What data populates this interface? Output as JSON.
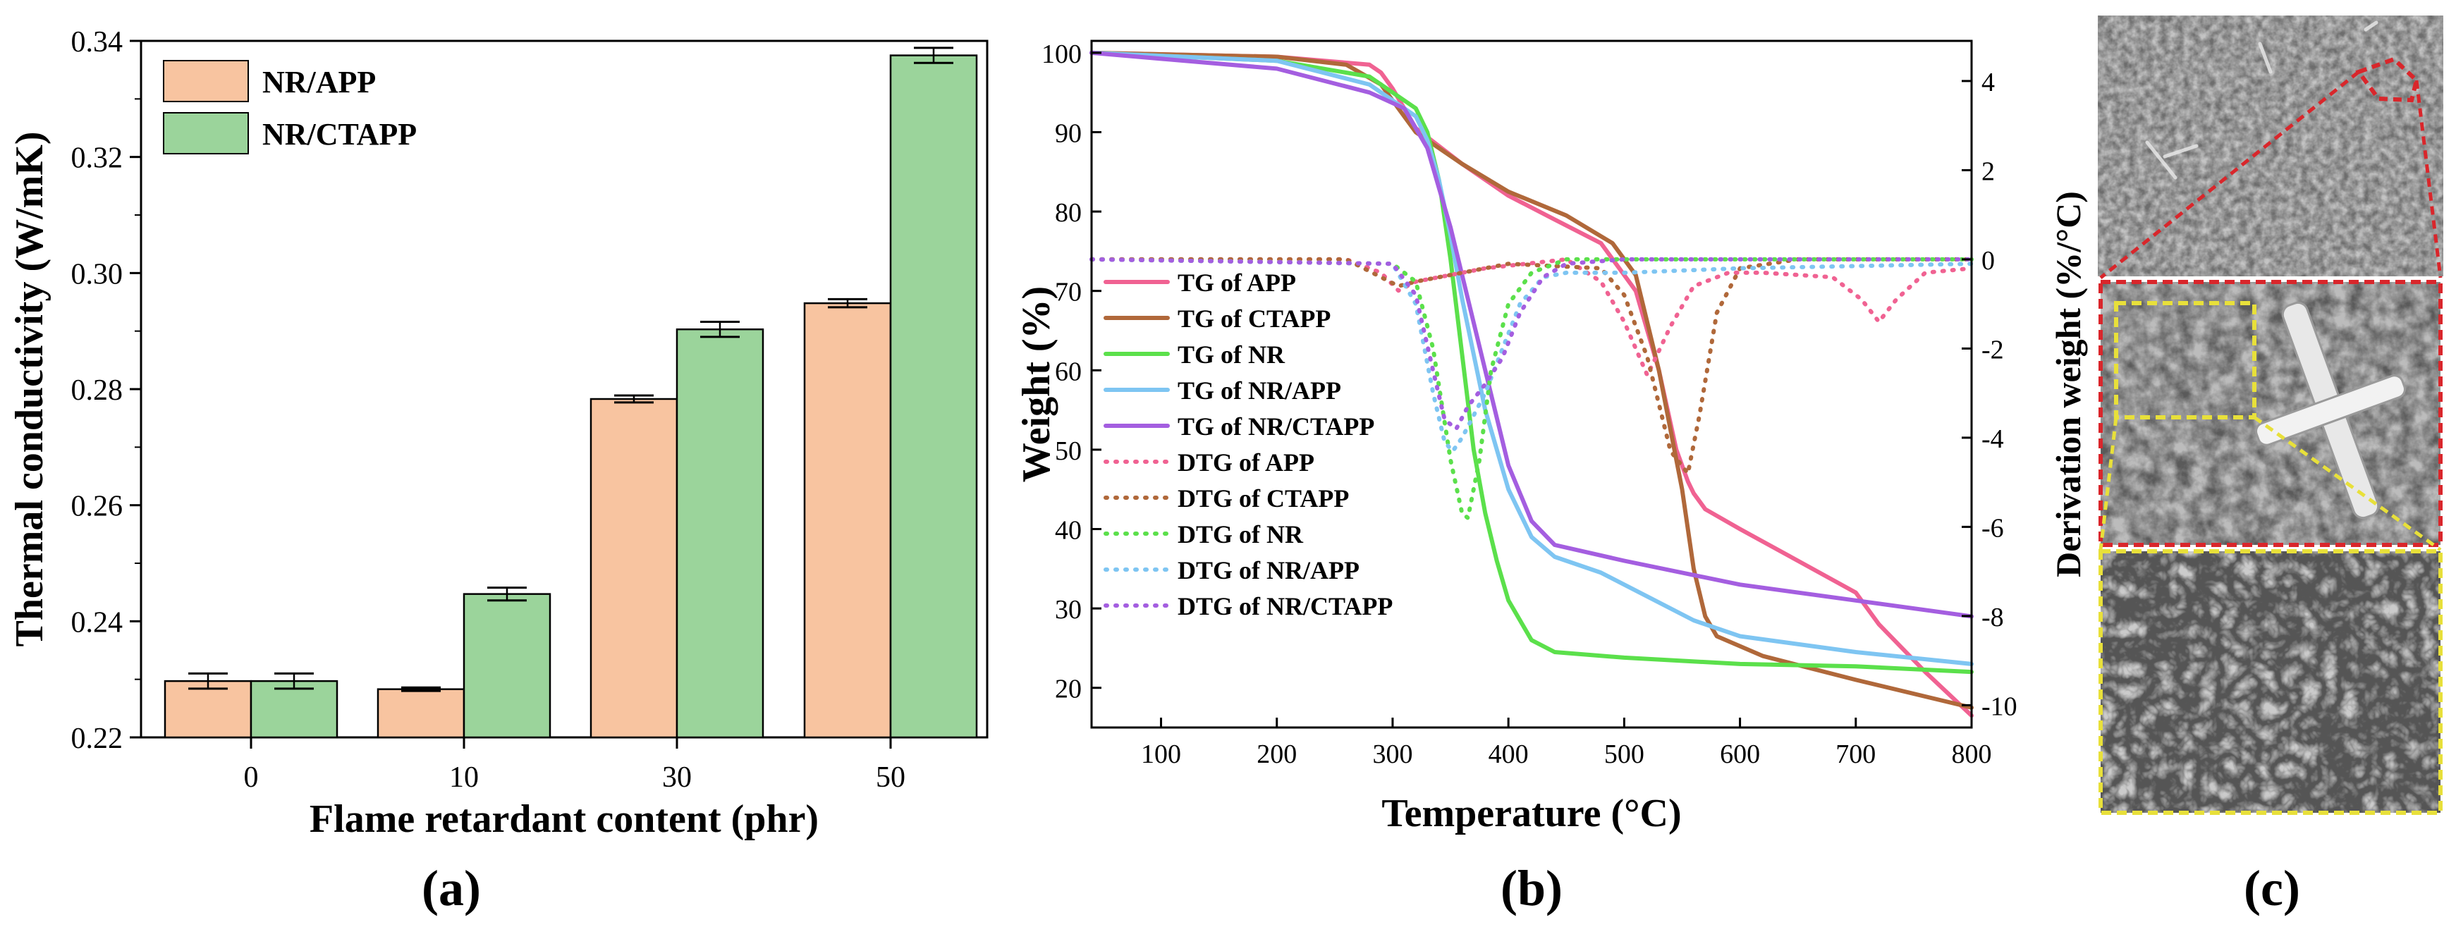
{
  "panel_labels": {
    "a": "(a)",
    "b": "(b)",
    "c": "(c)"
  },
  "colors": {
    "nr_app_bar": "#f8c4a0",
    "nr_ctapp_bar": "#9bd49b",
    "tg_app": "#f06292",
    "tg_ctapp": "#b0683a",
    "tg_nr": "#5be04b",
    "tg_nr_app": "#7ec5f2",
    "tg_nr_ctapp": "#a45ee0",
    "sem_red_box": "#d9262b",
    "sem_yellow_box": "#e8e03a"
  },
  "chart_data": [
    {
      "type": "bar",
      "title": "",
      "xlabel": "Flame retardant content (phr)",
      "ylabel": "Thermal conductivity (W/mK)",
      "categories": [
        "0",
        "10",
        "30",
        "50"
      ],
      "ylim": [
        0.22,
        0.34
      ],
      "yticks": [
        "0.22",
        "0.24",
        "0.26",
        "0.28",
        "0.30",
        "0.32",
        "0.34"
      ],
      "legend_position": "top-left",
      "series": [
        {
          "name": "NR/APP",
          "values": [
            0.2297,
            0.2283,
            0.2783,
            0.2948
          ],
          "errors": [
            0.0013,
            0.0003,
            0.0006,
            0.0007
          ]
        },
        {
          "name": "NR/CTAPP",
          "values": [
            0.2297,
            0.2447,
            0.2903,
            0.3375
          ],
          "errors": [
            0.0013,
            0.0011,
            0.0013,
            0.0013
          ]
        }
      ]
    },
    {
      "type": "line",
      "title": "",
      "xlabel": "Temperature (°C)",
      "ylabel": "Weight (%)",
      "y2label": "Derivation weight (%/°C)",
      "xlim": [
        40,
        800
      ],
      "ylim": [
        15,
        101.5
      ],
      "y2lim": [
        -10.5,
        4.9
      ],
      "xticks": [
        "100",
        "200",
        "300",
        "400",
        "500",
        "600",
        "700",
        "800"
      ],
      "yticks": [
        "20",
        "30",
        "40",
        "50",
        "60",
        "70",
        "80",
        "90",
        "100"
      ],
      "y2ticks": [
        "-10",
        "-8",
        "-6",
        "-4",
        "-2",
        "0",
        "2",
        "4"
      ],
      "legend_position": "center-left",
      "series": [
        {
          "name": "TG of APP",
          "style": "solid",
          "axis": "left",
          "x": [
            40,
            200,
            280,
            290,
            300,
            320,
            360,
            400,
            440,
            480,
            510,
            530,
            545,
            555,
            560,
            570,
            600,
            650,
            700,
            720,
            760,
            800
          ],
          "y": [
            100,
            99.5,
            98.5,
            97.5,
            95.5,
            90.5,
            86,
            82,
            79,
            76,
            70,
            60,
            50,
            46,
            44.5,
            42.5,
            40,
            36,
            32,
            28,
            22,
            16.5
          ]
        },
        {
          "name": "TG of CTAPP",
          "style": "solid",
          "axis": "left",
          "x": [
            40,
            200,
            260,
            290,
            300,
            320,
            360,
            400,
            450,
            490,
            510,
            530,
            550,
            560,
            570,
            580,
            620,
            700,
            800
          ],
          "y": [
            100,
            99.5,
            98.5,
            96,
            94,
            90,
            86,
            82.5,
            79.5,
            76,
            72,
            60,
            45,
            35,
            29,
            26.5,
            24,
            21,
            17.5
          ]
        },
        {
          "name": "TG of NR",
          "style": "solid",
          "axis": "left",
          "x": [
            40,
            200,
            280,
            320,
            330,
            340,
            350,
            360,
            370,
            380,
            390,
            400,
            420,
            440,
            500,
            600,
            700,
            800
          ],
          "y": [
            100,
            99,
            97,
            93,
            90,
            84,
            74,
            62,
            50,
            42,
            36,
            31,
            26,
            24.5,
            23.8,
            23,
            22.7,
            22
          ]
        },
        {
          "name": "TG of NR/APP",
          "style": "solid",
          "axis": "left",
          "x": [
            40,
            200,
            280,
            320,
            330,
            340,
            350,
            360,
            370,
            380,
            400,
            420,
            440,
            480,
            520,
            560,
            600,
            700,
            800
          ],
          "y": [
            100,
            99,
            96,
            92,
            89,
            84,
            77,
            69,
            62,
            55,
            45,
            39,
            36.5,
            34.5,
            31.5,
            28.5,
            26.5,
            24.5,
            23
          ]
        },
        {
          "name": "TG of NR/CTAPP",
          "style": "solid",
          "axis": "left",
          "x": [
            40,
            200,
            280,
            310,
            330,
            340,
            350,
            360,
            370,
            380,
            400,
            420,
            440,
            500,
            600,
            700,
            800
          ],
          "y": [
            100,
            98,
            95,
            93,
            88,
            83,
            78,
            72,
            66,
            60,
            48,
            41,
            38,
            36,
            33,
            31,
            29
          ]
        },
        {
          "name": "DTG of APP",
          "style": "dotted",
          "axis": "right",
          "x": [
            40,
            260,
            290,
            305,
            320,
            340,
            380,
            450,
            480,
            500,
            520,
            540,
            560,
            590,
            620,
            680,
            705,
            720,
            735,
            760,
            800
          ],
          "y": [
            0,
            0,
            -0.3,
            -0.7,
            -0.5,
            -0.4,
            -0.2,
            0,
            -0.5,
            -1.4,
            -2.6,
            -1.5,
            -0.6,
            -0.3,
            -0.3,
            -0.4,
            -0.9,
            -1.4,
            -0.9,
            -0.3,
            -0.2
          ]
        },
        {
          "name": "DTG of CTAPP",
          "style": "dotted",
          "axis": "right",
          "x": [
            40,
            260,
            290,
            305,
            320,
            360,
            400,
            480,
            500,
            520,
            540,
            555,
            565,
            580,
            600,
            650,
            800
          ],
          "y": [
            0,
            0,
            -0.4,
            -0.6,
            -0.5,
            -0.3,
            -0.1,
            -0.2,
            -0.8,
            -2.2,
            -4.3,
            -4.8,
            -3.5,
            -1.2,
            -0.2,
            0,
            0
          ]
        },
        {
          "name": "DTG of NR",
          "style": "dotted",
          "axis": "right",
          "x": [
            40,
            300,
            320,
            335,
            350,
            360,
            365,
            375,
            385,
            400,
            420,
            450,
            500,
            800
          ],
          "y": [
            0,
            -0.1,
            -0.5,
            -2,
            -4.5,
            -5.7,
            -5.8,
            -4.5,
            -2.5,
            -1,
            -0.3,
            0,
            0,
            0
          ]
        },
        {
          "name": "DTG of NR/APP",
          "style": "dotted",
          "axis": "right",
          "x": [
            40,
            300,
            320,
            335,
            345,
            352,
            360,
            370,
            380,
            395,
            410,
            430,
            450,
            500,
            600,
            800
          ],
          "y": [
            0,
            -0.1,
            -1,
            -3,
            -4.1,
            -4.3,
            -4,
            -3.5,
            -3,
            -2,
            -1,
            -0.4,
            -0.3,
            -0.3,
            -0.2,
            -0.1
          ]
        },
        {
          "name": "DTG of NR/CTAPP",
          "style": "dotted",
          "axis": "right",
          "x": [
            40,
            300,
            320,
            335,
            345,
            355,
            365,
            380,
            395,
            410,
            430,
            450,
            500,
            800
          ],
          "y": [
            0,
            -0.1,
            -0.8,
            -2.5,
            -3.6,
            -3.8,
            -3.3,
            -2.8,
            -2.2,
            -1.2,
            -0.4,
            -0.1,
            0,
            0
          ]
        }
      ]
    }
  ],
  "sem": {
    "description_icon": "sem-micrograph-image"
  }
}
